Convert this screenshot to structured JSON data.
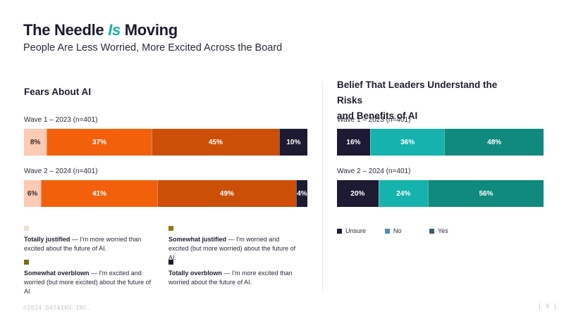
{
  "header": {
    "title_pre": "The Needle ",
    "title_highlight": "Is",
    "title_post": " Moving",
    "subtitle": "People Are Less Worried, More Excited Across the Board"
  },
  "colors": {
    "totally_justified": "#fbcbb4",
    "somewhat_justified": "#f2600c",
    "somewhat_overblown": "#cc4f08",
    "totally_overblown": "#1d1a33",
    "gold_marker": "#8e7a12",
    "maroon": "#3d1025",
    "unsure": "#1d1a33",
    "no": "#16b2ad",
    "yes": "#0f8a7d",
    "legend_unsure": "#1d1a33",
    "legend_no": "#4f8fb8",
    "legend_yes": "#3a5a6e"
  },
  "chart_data": [
    {
      "type": "bar",
      "stacked": true,
      "orientation": "horizontal",
      "title": "Fears About AI",
      "categories": [
        "Wave 1 – 2023 (n=401)",
        "Wave 2 – 2024 (n=401)"
      ],
      "series": [
        {
          "name": "Totally justified",
          "values": [
            8,
            6
          ],
          "labels": [
            "8%",
            "6%"
          ]
        },
        {
          "name": "Somewhat justified",
          "values": [
            37,
            41
          ],
          "labels": [
            "37%",
            "41%"
          ]
        },
        {
          "name": "Somewhat overblown",
          "values": [
            45,
            49
          ],
          "labels": [
            "45%",
            "49%"
          ]
        },
        {
          "name": "Totally overblown",
          "values": [
            10,
            4
          ],
          "labels": [
            "10%",
            "4%"
          ]
        }
      ],
      "legend": [
        {
          "name": "Totally justified",
          "desc": " — I'm more worried than excited about the future of AI.",
          "swatch": "#ebe3cf"
        },
        {
          "name": "Somewhat justified",
          "desc": " — I'm worried and excited (but more worried) about the future of AI.",
          "swatch": "#8e7a12"
        },
        {
          "name": "Somewhat overblown",
          "desc": " — I'm excited and worried (but more excited) about the future of AI",
          "swatch": "#7a6a10"
        },
        {
          "name": "Totally overblown",
          "desc": " — I'm more excited than worried about the future of AI.",
          "swatch": "#1d1a33"
        }
      ]
    },
    {
      "type": "bar",
      "stacked": true,
      "orientation": "horizontal",
      "title_line1": "Belief That Leaders Understand the Risks",
      "title_line2": "and Benefits of AI",
      "categories": [
        "Wave 1 – 2023 (n=401)",
        "Wave 2 – 2024 (n=401)"
      ],
      "series": [
        {
          "name": "Unsure",
          "values": [
            16,
            20
          ],
          "labels": [
            "16%",
            "20%"
          ]
        },
        {
          "name": "No",
          "values": [
            36,
            24
          ],
          "labels": [
            "36%",
            "24%"
          ]
        },
        {
          "name": "Yes",
          "values": [
            48,
            56
          ],
          "labels": [
            "48%",
            "56%"
          ]
        }
      ],
      "legend": [
        {
          "name": "Unsure",
          "swatch": "#1d1a33"
        },
        {
          "name": "No",
          "swatch": "#4f8fb8"
        },
        {
          "name": "Yes",
          "swatch": "#3a5a6e"
        }
      ]
    }
  ],
  "footer": {
    "copyright": "©2024 DATAIKU INC.",
    "page": "| 9 |"
  }
}
